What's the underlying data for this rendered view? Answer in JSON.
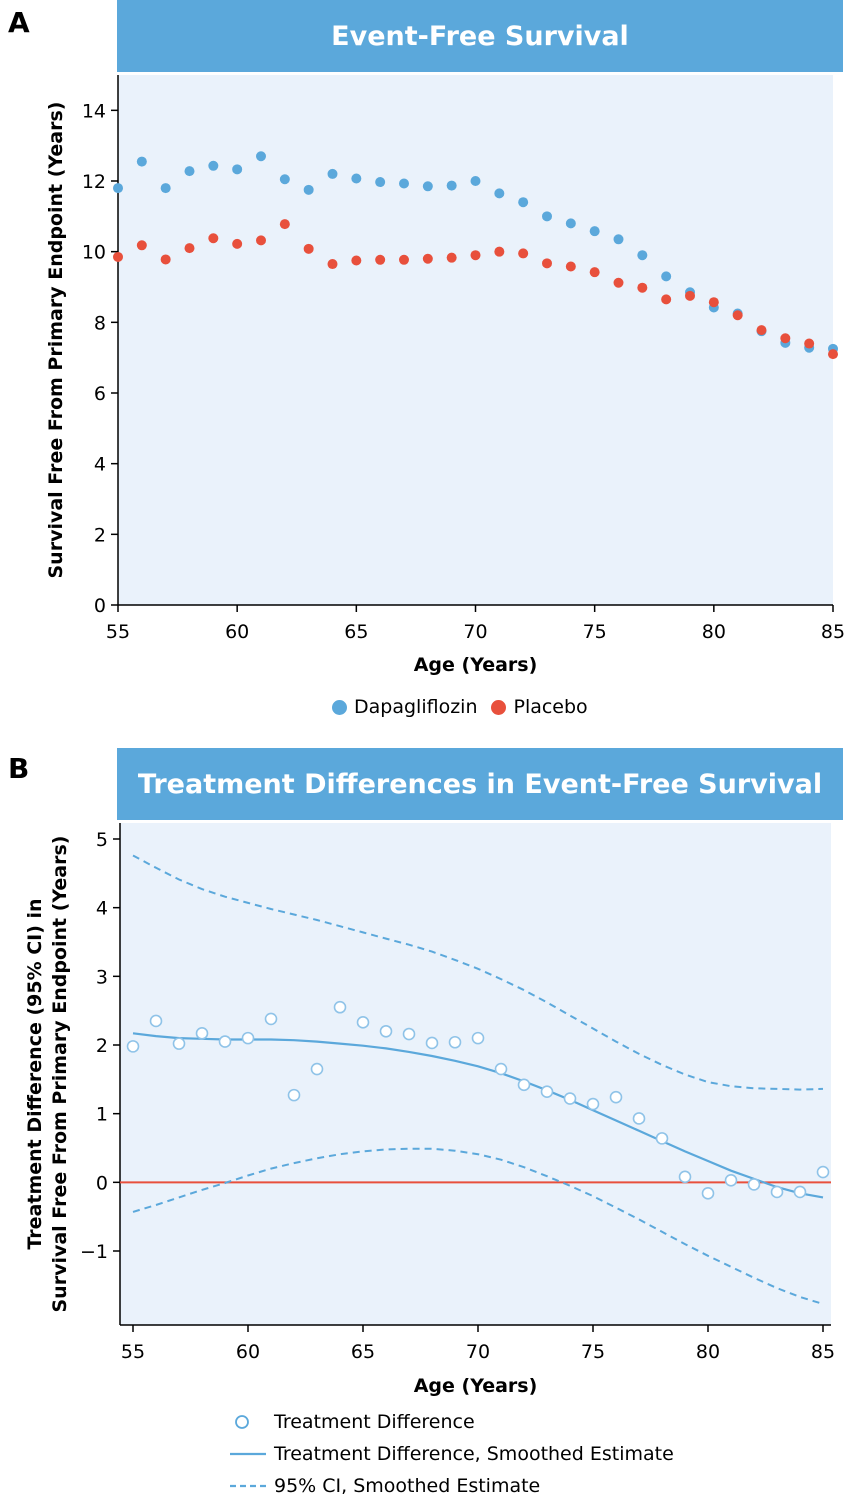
{
  "panel_a": {
    "letter": "A",
    "title": "Event-Free Survival",
    "colors": {
      "dapagliflozin": "#5ba8db",
      "placebo": "#e8503c",
      "background": "#eaf2fb"
    },
    "chart_data": {
      "type": "scatter",
      "title": "Event-Free Survival",
      "xlabel": "Age (Years)",
      "ylabel": "Survival Free From Primary Endpoint (Years)",
      "xlim": [
        55,
        85
      ],
      "ylim": [
        0,
        15
      ],
      "xticks": [
        "55",
        "60",
        "65",
        "70",
        "75",
        "80",
        "85"
      ],
      "yticks": [
        "0",
        "2",
        "4",
        "6",
        "8",
        "10",
        "12",
        "14"
      ],
      "x": [
        55,
        56,
        57,
        58,
        59,
        60,
        61,
        62,
        63,
        64,
        65,
        66,
        67,
        68,
        69,
        70,
        71,
        72,
        73,
        74,
        75,
        76,
        77,
        78,
        79,
        80,
        81,
        82,
        83,
        84,
        85
      ],
      "series": [
        {
          "name": "Dapagliflozin",
          "values": [
            11.8,
            12.55,
            11.8,
            12.28,
            12.43,
            12.33,
            12.7,
            12.05,
            11.75,
            12.2,
            12.07,
            11.97,
            11.93,
            11.85,
            11.87,
            12.0,
            11.65,
            11.4,
            11.0,
            10.8,
            10.58,
            10.35,
            9.9,
            9.3,
            8.85,
            8.42,
            8.25,
            7.75,
            7.42,
            7.28,
            7.25
          ]
        },
        {
          "name": "Placebo",
          "values": [
            9.85,
            10.18,
            9.78,
            10.1,
            10.38,
            10.22,
            10.32,
            10.78,
            10.08,
            9.65,
            9.75,
            9.77,
            9.77,
            9.8,
            9.83,
            9.9,
            10.0,
            9.95,
            9.67,
            9.58,
            9.42,
            9.12,
            8.98,
            8.65,
            8.75,
            8.57,
            8.2,
            7.78,
            7.55,
            7.4,
            7.1
          ]
        }
      ],
      "legend": [
        "Dapagliflozin",
        "Placebo"
      ],
      "legend_position": "bottom"
    }
  },
  "panel_b": {
    "letter": "B",
    "title": "Treatment Differences in Event-Free Survival",
    "colors": {
      "difference": "#5ba8db",
      "zero_line": "#e8503c",
      "background": "#eaf2fb"
    },
    "chart_data": {
      "type": "scatter",
      "title": "Treatment Differences in Event-Free Survival",
      "xlabel": "Age (Years)",
      "ylabel_line1": "Treatment Difference (95% CI) in",
      "ylabel_line2": "Survival Free From Primary Endpoint (Years)",
      "xlim": [
        55,
        85
      ],
      "ylim": [
        -2,
        5.2
      ],
      "xticks": [
        "55",
        "60",
        "65",
        "70",
        "75",
        "80",
        "85"
      ],
      "yticks": [
        "−1",
        "0",
        "1",
        "2",
        "3",
        "4",
        "5"
      ],
      "ytick_values": [
        -1,
        0,
        1,
        2,
        3,
        4,
        5
      ],
      "reference_line": 0,
      "x": [
        55,
        56,
        57,
        58,
        59,
        60,
        61,
        62,
        63,
        64,
        65,
        66,
        67,
        68,
        69,
        70,
        71,
        72,
        73,
        74,
        75,
        76,
        77,
        78,
        79,
        80,
        81,
        82,
        83,
        84,
        85
      ],
      "series": [
        {
          "name": "Treatment Difference",
          "style": "open-circle",
          "values": [
            1.98,
            2.35,
            2.02,
            2.17,
            2.05,
            2.1,
            2.38,
            1.27,
            1.65,
            2.55,
            2.33,
            2.2,
            2.16,
            2.03,
            2.04,
            2.1,
            1.65,
            1.42,
            1.32,
            1.22,
            1.14,
            1.24,
            0.93,
            0.64,
            0.08,
            -0.16,
            0.03,
            -0.03,
            -0.14,
            -0.14,
            0.15
          ]
        },
        {
          "name": "Treatment Difference, Smoothed Estimate",
          "style": "solid",
          "values": [
            2.17,
            2.13,
            2.1,
            2.09,
            2.08,
            2.08,
            2.08,
            2.07,
            2.05,
            2.02,
            1.99,
            1.95,
            1.9,
            1.84,
            1.77,
            1.69,
            1.59,
            1.47,
            1.34,
            1.2,
            1.05,
            0.9,
            0.75,
            0.6,
            0.45,
            0.31,
            0.17,
            0.05,
            -0.07,
            -0.16,
            -0.22
          ]
        },
        {
          "name": "95% CI, Smoothed Estimate",
          "style": "dashed",
          "upper": [
            4.76,
            4.58,
            4.41,
            4.27,
            4.16,
            4.07,
            3.98,
            3.9,
            3.82,
            3.73,
            3.64,
            3.55,
            3.46,
            3.36,
            3.24,
            3.11,
            2.96,
            2.8,
            2.62,
            2.43,
            2.24,
            2.05,
            1.87,
            1.71,
            1.57,
            1.46,
            1.4,
            1.37,
            1.36,
            1.35,
            1.36
          ],
          "lower": [
            -0.43,
            -0.33,
            -0.22,
            -0.11,
            -0.01,
            0.1,
            0.2,
            0.28,
            0.35,
            0.41,
            0.45,
            0.48,
            0.49,
            0.49,
            0.46,
            0.41,
            0.33,
            0.22,
            0.09,
            -0.05,
            -0.2,
            -0.37,
            -0.54,
            -0.72,
            -0.9,
            -1.07,
            -1.23,
            -1.39,
            -1.54,
            -1.67,
            -1.77
          ]
        }
      ],
      "legend": [
        "Treatment Difference",
        "Treatment Difference, Smoothed Estimate",
        "95% CI, Smoothed Estimate"
      ],
      "legend_position": "bottom"
    }
  }
}
